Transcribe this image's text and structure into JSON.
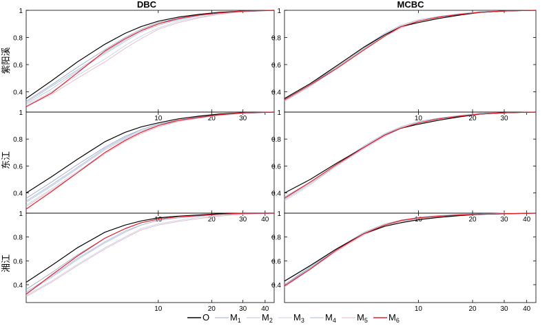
{
  "figure": {
    "column_titles": [
      "DBC",
      "MCBC"
    ],
    "row_labels": [
      "紫阳溪",
      "东江",
      "湘江"
    ]
  },
  "legend": {
    "entries": [
      {
        "base": "O",
        "sub": "",
        "color": "#000000"
      },
      {
        "base": "M",
        "sub": "1",
        "color": "#9aa9c8"
      },
      {
        "base": "M",
        "sub": "2",
        "color": "#b7c5dd"
      },
      {
        "base": "M",
        "sub": "3",
        "color": "#c8d2e6"
      },
      {
        "base": "M",
        "sub": "4",
        "color": "#a8bad6"
      },
      {
        "base": "M",
        "sub": "5",
        "color": "#e4b6c6"
      },
      {
        "base": "M",
        "sub": "6",
        "color": "#e3202a"
      }
    ]
  },
  "chart_data": [
    {
      "type": "line",
      "row": 0,
      "col": 0,
      "title": "DBC",
      "ylabel": "紫阳溪",
      "xscale": "log",
      "xlim": [
        1.8,
        45
      ],
      "ylim": [
        0.25,
        1.0
      ],
      "xticks": [
        10,
        20,
        30
      ],
      "yticks": [
        0.4,
        0.6,
        0.8,
        1
      ],
      "x": [
        1.8,
        2.5,
        3.5,
        5,
        6.5,
        8,
        10,
        13,
        17,
        22,
        30,
        45
      ],
      "series": [
        {
          "name": "O",
          "values": [
            0.35,
            0.48,
            0.62,
            0.75,
            0.83,
            0.88,
            0.92,
            0.95,
            0.97,
            0.985,
            0.995,
            1.0
          ]
        },
        {
          "name": "M1",
          "values": [
            0.33,
            0.45,
            0.58,
            0.71,
            0.8,
            0.86,
            0.91,
            0.94,
            0.965,
            0.98,
            0.99,
            1.0
          ]
        },
        {
          "name": "M2",
          "values": [
            0.31,
            0.42,
            0.55,
            0.68,
            0.77,
            0.84,
            0.89,
            0.93,
            0.96,
            0.98,
            0.99,
            1.0
          ]
        },
        {
          "name": "M3",
          "values": [
            0.3,
            0.4,
            0.52,
            0.64,
            0.74,
            0.81,
            0.87,
            0.92,
            0.95,
            0.975,
            0.99,
            1.0
          ]
        },
        {
          "name": "M4",
          "values": [
            0.32,
            0.44,
            0.56,
            0.69,
            0.78,
            0.85,
            0.9,
            0.935,
            0.96,
            0.98,
            0.99,
            1.0
          ]
        },
        {
          "name": "M5",
          "values": [
            0.29,
            0.38,
            0.5,
            0.62,
            0.72,
            0.79,
            0.86,
            0.91,
            0.945,
            0.97,
            0.99,
            1.0
          ]
        },
        {
          "name": "M6",
          "values": [
            0.29,
            0.39,
            0.54,
            0.7,
            0.79,
            0.85,
            0.9,
            0.94,
            0.965,
            0.98,
            0.995,
            1.0
          ]
        }
      ]
    },
    {
      "type": "line",
      "row": 0,
      "col": 1,
      "title": "MCBC",
      "ylabel": "",
      "xscale": "log",
      "xlim": [
        1.8,
        45
      ],
      "ylim": [
        0.25,
        1.0
      ],
      "xticks": [
        10,
        20,
        30
      ],
      "yticks": [
        0.4,
        0.6,
        0.8,
        1
      ],
      "x": [
        1.8,
        2.5,
        3.5,
        5,
        6.5,
        8,
        10,
        13,
        17,
        22,
        30,
        45
      ],
      "series": [
        {
          "name": "O",
          "values": [
            0.35,
            0.46,
            0.59,
            0.73,
            0.82,
            0.88,
            0.91,
            0.94,
            0.965,
            0.985,
            0.995,
            1.0
          ]
        },
        {
          "name": "M1",
          "values": [
            0.34,
            0.45,
            0.58,
            0.72,
            0.82,
            0.88,
            0.92,
            0.95,
            0.97,
            0.985,
            0.995,
            1.0
          ]
        },
        {
          "name": "M2",
          "values": [
            0.33,
            0.44,
            0.57,
            0.71,
            0.81,
            0.88,
            0.92,
            0.95,
            0.97,
            0.985,
            0.995,
            1.0
          ]
        },
        {
          "name": "M3",
          "values": [
            0.33,
            0.44,
            0.58,
            0.72,
            0.82,
            0.88,
            0.92,
            0.95,
            0.97,
            0.985,
            0.995,
            1.0
          ]
        },
        {
          "name": "M4",
          "values": [
            0.34,
            0.45,
            0.59,
            0.73,
            0.83,
            0.89,
            0.93,
            0.955,
            0.975,
            0.99,
            0.995,
            1.0
          ]
        },
        {
          "name": "M5",
          "values": [
            0.33,
            0.44,
            0.57,
            0.71,
            0.81,
            0.87,
            0.92,
            0.95,
            0.97,
            0.985,
            0.995,
            1.0
          ]
        },
        {
          "name": "M6",
          "values": [
            0.34,
            0.45,
            0.57,
            0.71,
            0.81,
            0.88,
            0.92,
            0.95,
            0.97,
            0.985,
            0.995,
            1.0
          ]
        }
      ]
    },
    {
      "type": "line",
      "row": 1,
      "col": 0,
      "title": "",
      "ylabel": "东江",
      "xscale": "log",
      "xlim": [
        1.8,
        45
      ],
      "ylim": [
        0.25,
        1.0
      ],
      "xticks": [
        10,
        20,
        30,
        40
      ],
      "yticks": [
        0.4,
        0.6,
        0.8,
        1
      ],
      "x": [
        1.8,
        2.5,
        3.5,
        5,
        6.5,
        8,
        10,
        13,
        17,
        22,
        30,
        45
      ],
      "series": [
        {
          "name": "O",
          "values": [
            0.4,
            0.52,
            0.65,
            0.78,
            0.85,
            0.89,
            0.92,
            0.95,
            0.97,
            0.985,
            0.995,
            1.0
          ]
        },
        {
          "name": "M1",
          "values": [
            0.36,
            0.48,
            0.61,
            0.74,
            0.82,
            0.87,
            0.91,
            0.94,
            0.965,
            0.98,
            0.995,
            1.0
          ]
        },
        {
          "name": "M2",
          "values": [
            0.33,
            0.45,
            0.58,
            0.72,
            0.8,
            0.86,
            0.9,
            0.935,
            0.96,
            0.98,
            0.99,
            1.0
          ]
        },
        {
          "name": "M3",
          "values": [
            0.31,
            0.43,
            0.56,
            0.7,
            0.79,
            0.85,
            0.9,
            0.93,
            0.96,
            0.975,
            0.99,
            1.0
          ]
        },
        {
          "name": "M4",
          "values": [
            0.34,
            0.46,
            0.59,
            0.73,
            0.81,
            0.87,
            0.91,
            0.94,
            0.965,
            0.98,
            0.995,
            1.0
          ]
        },
        {
          "name": "M5",
          "values": [
            0.3,
            0.42,
            0.55,
            0.69,
            0.78,
            0.84,
            0.89,
            0.93,
            0.955,
            0.975,
            0.99,
            1.0
          ]
        },
        {
          "name": "M6",
          "values": [
            0.28,
            0.41,
            0.55,
            0.7,
            0.79,
            0.85,
            0.9,
            0.94,
            0.96,
            0.98,
            0.995,
            1.0
          ]
        }
      ]
    },
    {
      "type": "line",
      "row": 1,
      "col": 1,
      "title": "",
      "ylabel": "",
      "xscale": "log",
      "xlim": [
        1.8,
        45
      ],
      "ylim": [
        0.25,
        1.0
      ],
      "xticks": [
        10,
        20,
        30,
        40
      ],
      "yticks": [
        0.4,
        0.6,
        0.8,
        1
      ],
      "x": [
        1.8,
        2.5,
        3.5,
        5,
        6.5,
        8,
        10,
        13,
        17,
        22,
        30,
        45
      ],
      "series": [
        {
          "name": "O",
          "values": [
            0.4,
            0.5,
            0.62,
            0.74,
            0.83,
            0.88,
            0.91,
            0.94,
            0.965,
            0.985,
            0.995,
            1.0
          ]
        },
        {
          "name": "M1",
          "values": [
            0.37,
            0.48,
            0.61,
            0.74,
            0.83,
            0.88,
            0.92,
            0.95,
            0.97,
            0.985,
            0.995,
            1.0
          ]
        },
        {
          "name": "M2",
          "values": [
            0.35,
            0.47,
            0.6,
            0.73,
            0.82,
            0.88,
            0.92,
            0.95,
            0.97,
            0.985,
            0.995,
            1.0
          ]
        },
        {
          "name": "M3",
          "values": [
            0.34,
            0.46,
            0.6,
            0.74,
            0.83,
            0.89,
            0.93,
            0.955,
            0.975,
            0.99,
            0.995,
            1.0
          ]
        },
        {
          "name": "M4",
          "values": [
            0.36,
            0.48,
            0.61,
            0.75,
            0.84,
            0.89,
            0.93,
            0.955,
            0.975,
            0.99,
            0.995,
            1.0
          ]
        },
        {
          "name": "M5",
          "values": [
            0.35,
            0.47,
            0.6,
            0.73,
            0.82,
            0.88,
            0.92,
            0.95,
            0.97,
            0.985,
            0.995,
            1.0
          ]
        },
        {
          "name": "M6",
          "values": [
            0.36,
            0.48,
            0.61,
            0.74,
            0.83,
            0.88,
            0.92,
            0.95,
            0.97,
            0.985,
            0.995,
            1.0
          ]
        }
      ]
    },
    {
      "type": "line",
      "row": 2,
      "col": 0,
      "title": "",
      "ylabel": "湘江",
      "xscale": "log",
      "xlim": [
        1.8,
        45
      ],
      "ylim": [
        0.25,
        1.0
      ],
      "xticks": [
        10,
        20,
        30,
        40
      ],
      "yticks": [
        0.4,
        0.6,
        0.8,
        1
      ],
      "x": [
        1.8,
        2.5,
        3.5,
        5,
        6.5,
        8,
        10,
        13,
        17,
        22,
        30,
        45
      ],
      "series": [
        {
          "name": "O",
          "values": [
            0.42,
            0.56,
            0.71,
            0.84,
            0.9,
            0.935,
            0.96,
            0.975,
            0.985,
            0.995,
            1.0,
            1.0
          ]
        },
        {
          "name": "M1",
          "values": [
            0.36,
            0.5,
            0.65,
            0.79,
            0.87,
            0.92,
            0.95,
            0.97,
            0.98,
            0.99,
            0.995,
            1.0
          ]
        },
        {
          "name": "M2",
          "values": [
            0.33,
            0.46,
            0.61,
            0.75,
            0.84,
            0.9,
            0.94,
            0.96,
            0.975,
            0.99,
            0.995,
            1.0
          ]
        },
        {
          "name": "M3",
          "values": [
            0.31,
            0.43,
            0.57,
            0.71,
            0.8,
            0.87,
            0.91,
            0.94,
            0.965,
            0.98,
            0.99,
            1.0
          ]
        },
        {
          "name": "M4",
          "values": [
            0.34,
            0.47,
            0.62,
            0.76,
            0.85,
            0.9,
            0.94,
            0.96,
            0.975,
            0.99,
            0.995,
            1.0
          ]
        },
        {
          "name": "M5",
          "values": [
            0.3,
            0.42,
            0.56,
            0.7,
            0.79,
            0.86,
            0.9,
            0.93,
            0.955,
            0.975,
            0.99,
            1.0
          ]
        },
        {
          "name": "M6",
          "values": [
            0.32,
            0.48,
            0.64,
            0.79,
            0.87,
            0.92,
            0.95,
            0.97,
            0.98,
            0.99,
            1.0,
            1.0
          ]
        }
      ]
    },
    {
      "type": "line",
      "row": 2,
      "col": 1,
      "title": "",
      "ylabel": "",
      "xscale": "log",
      "xlim": [
        1.8,
        45
      ],
      "ylim": [
        0.25,
        1.0
      ],
      "xticks": [
        10,
        20,
        30,
        40
      ],
      "yticks": [
        0.4,
        0.6,
        0.8,
        1
      ],
      "x": [
        1.8,
        2.5,
        3.5,
        5,
        6.5,
        8,
        10,
        13,
        17,
        22,
        30,
        45
      ],
      "series": [
        {
          "name": "O",
          "values": [
            0.43,
            0.56,
            0.7,
            0.83,
            0.89,
            0.92,
            0.945,
            0.965,
            0.98,
            0.99,
            0.995,
            1.0
          ]
        },
        {
          "name": "M1",
          "values": [
            0.4,
            0.54,
            0.69,
            0.83,
            0.9,
            0.935,
            0.96,
            0.975,
            0.985,
            0.99,
            0.995,
            1.0
          ]
        },
        {
          "name": "M2",
          "values": [
            0.39,
            0.53,
            0.69,
            0.83,
            0.9,
            0.935,
            0.96,
            0.975,
            0.985,
            0.99,
            0.995,
            1.0
          ]
        },
        {
          "name": "M3",
          "values": [
            0.39,
            0.54,
            0.7,
            0.84,
            0.9,
            0.94,
            0.96,
            0.975,
            0.985,
            0.99,
            0.995,
            1.0
          ]
        },
        {
          "name": "M4",
          "values": [
            0.4,
            0.55,
            0.7,
            0.84,
            0.91,
            0.94,
            0.965,
            0.98,
            0.99,
            0.995,
            1.0,
            1.0
          ]
        },
        {
          "name": "M5",
          "values": [
            0.38,
            0.53,
            0.68,
            0.82,
            0.89,
            0.93,
            0.955,
            0.97,
            0.985,
            0.99,
            0.995,
            1.0
          ]
        },
        {
          "name": "M6",
          "values": [
            0.39,
            0.53,
            0.69,
            0.83,
            0.9,
            0.94,
            0.96,
            0.975,
            0.985,
            0.99,
            0.995,
            1.0
          ]
        }
      ]
    }
  ]
}
